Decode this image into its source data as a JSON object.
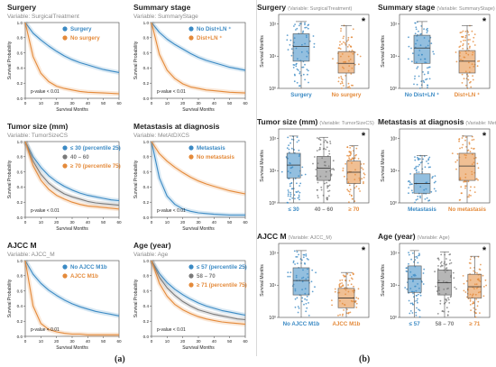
{
  "colors": {
    "blue": "#3b8ac4",
    "orange": "#e48a3a",
    "gray": "#7a7a7a",
    "star": "#111111"
  },
  "panel_labels": {
    "a": "(a)",
    "b": "(b)"
  },
  "chart_data": [
    {
      "type": "line",
      "panel": "a",
      "title": "Surgery",
      "subtitle": "Variable: SurgicalTreatment",
      "xlabel": "Survival Months",
      "ylabel": "Survival Probability",
      "xlim": [
        0,
        60
      ],
      "ylim": [
        0,
        1
      ],
      "xticks": [
        "0",
        "10",
        "20",
        "30",
        "40",
        "50",
        "60"
      ],
      "yticks": [
        "0.0",
        "0.2",
        "0.4",
        "0.6",
        "0.8",
        "1.0"
      ],
      "legend_position": "top-right",
      "annotation": "p-value < 0.01",
      "x": [
        0,
        5,
        10,
        15,
        20,
        25,
        30,
        35,
        40,
        45,
        50,
        55,
        60
      ],
      "series": [
        {
          "name": "Surgery",
          "color": "blue",
          "values": [
            1.0,
            0.86,
            0.77,
            0.69,
            0.62,
            0.56,
            0.51,
            0.47,
            0.44,
            0.41,
            0.38,
            0.36,
            0.34
          ]
        },
        {
          "name": "No surgery",
          "color": "orange",
          "values": [
            1.0,
            0.55,
            0.33,
            0.22,
            0.16,
            0.13,
            0.11,
            0.09,
            0.08,
            0.075,
            0.07,
            0.065,
            0.06
          ]
        }
      ]
    },
    {
      "type": "line",
      "panel": "a",
      "title": "Summary stage",
      "subtitle": "Variable: SummaryStage",
      "xlabel": "Survival Months",
      "ylabel": "Survival Probability",
      "xlim": [
        0,
        60
      ],
      "ylim": [
        0,
        1
      ],
      "xticks": [
        "0",
        "10",
        "20",
        "30",
        "40",
        "50",
        "60"
      ],
      "yticks": [
        "0.0",
        "0.2",
        "0.4",
        "0.6",
        "0.8",
        "1.0"
      ],
      "legend_position": "top-right",
      "annotation": "p-value < 0.01",
      "x": [
        0,
        5,
        10,
        15,
        20,
        25,
        30,
        35,
        40,
        45,
        50,
        55,
        60
      ],
      "series": [
        {
          "name": "No Dist+LN ⁺",
          "color": "blue",
          "values": [
            1.0,
            0.87,
            0.78,
            0.71,
            0.65,
            0.59,
            0.54,
            0.5,
            0.47,
            0.44,
            0.41,
            0.39,
            0.37
          ]
        },
        {
          "name": "Dist+LN ⁺",
          "color": "orange",
          "values": [
            1.0,
            0.58,
            0.37,
            0.26,
            0.19,
            0.15,
            0.13,
            0.11,
            0.1,
            0.09,
            0.08,
            0.075,
            0.07
          ]
        }
      ]
    },
    {
      "type": "line",
      "panel": "a",
      "title": "Tumor size (mm)",
      "subtitle": "Variable: TumorSizeCS",
      "xlabel": "Survival Months",
      "ylabel": "Survival Probability",
      "xlim": [
        0,
        60
      ],
      "ylim": [
        0,
        1
      ],
      "xticks": [
        "0",
        "10",
        "20",
        "30",
        "40",
        "50",
        "60"
      ],
      "yticks": [
        "0.0",
        "0.2",
        "0.4",
        "0.6",
        "0.8",
        "1.0"
      ],
      "legend_position": "top-right",
      "annotation": "p-value < 0.01",
      "x": [
        0,
        5,
        10,
        15,
        20,
        25,
        30,
        35,
        40,
        45,
        50,
        55,
        60
      ],
      "series": [
        {
          "name": "≤  30  (percentile 25)",
          "color": "blue",
          "values": [
            1.0,
            0.8,
            0.66,
            0.55,
            0.47,
            0.41,
            0.36,
            0.32,
            0.29,
            0.27,
            0.25,
            0.23,
            0.22
          ]
        },
        {
          "name": "40 – 60",
          "color": "gray",
          "values": [
            1.0,
            0.74,
            0.57,
            0.45,
            0.37,
            0.31,
            0.27,
            0.24,
            0.21,
            0.19,
            0.18,
            0.17,
            0.16
          ]
        },
        {
          "name": "≥  70  (percentile 75)",
          "color": "orange",
          "values": [
            1.0,
            0.68,
            0.49,
            0.37,
            0.29,
            0.24,
            0.2,
            0.17,
            0.15,
            0.14,
            0.13,
            0.12,
            0.11
          ]
        }
      ]
    },
    {
      "type": "line",
      "panel": "a",
      "title": "Metastasis at diagnosis",
      "subtitle": "Variable: MetAtDXCS",
      "xlabel": "Survival Months",
      "ylabel": "Survival Probability",
      "xlim": [
        0,
        60
      ],
      "ylim": [
        0,
        1
      ],
      "xticks": [
        "0",
        "10",
        "20",
        "30",
        "40",
        "50",
        "60"
      ],
      "yticks": [
        "0.0",
        "0.2",
        "0.4",
        "0.6",
        "0.8",
        "1.0"
      ],
      "legend_position": "top-right",
      "annotation": "p-value < 0.01",
      "x": [
        0,
        5,
        10,
        15,
        20,
        25,
        30,
        35,
        40,
        45,
        50,
        55,
        60
      ],
      "series": [
        {
          "name": "Metastasis",
          "color": "blue",
          "values": [
            1.0,
            0.52,
            0.28,
            0.17,
            0.11,
            0.08,
            0.06,
            0.05,
            0.04,
            0.035,
            0.03,
            0.03,
            0.03
          ]
        },
        {
          "name": "No metastasis",
          "color": "orange",
          "values": [
            1.0,
            0.84,
            0.74,
            0.66,
            0.59,
            0.53,
            0.48,
            0.44,
            0.41,
            0.38,
            0.35,
            0.33,
            0.31
          ]
        }
      ]
    },
    {
      "type": "line",
      "panel": "a",
      "title": "AJCC M",
      "subtitle": "Variable: AJCC_M",
      "xlabel": "Survival Months",
      "ylabel": "Survival Probability",
      "xlim": [
        0,
        60
      ],
      "ylim": [
        0,
        1
      ],
      "xticks": [
        "0",
        "10",
        "20",
        "30",
        "40",
        "50",
        "60"
      ],
      "yticks": [
        "0.0",
        "0.2",
        "0.4",
        "0.6",
        "0.8",
        "1.0"
      ],
      "legend_position": "top-right",
      "annotation": "p-value < 0.01",
      "x": [
        0,
        5,
        10,
        15,
        20,
        25,
        30,
        35,
        40,
        45,
        50,
        55,
        60
      ],
      "series": [
        {
          "name": "No AJCC M1b",
          "color": "blue",
          "values": [
            1.0,
            0.82,
            0.7,
            0.61,
            0.54,
            0.48,
            0.43,
            0.39,
            0.36,
            0.33,
            0.31,
            0.29,
            0.27
          ]
        },
        {
          "name": "AJCC M1b",
          "color": "orange",
          "values": [
            1.0,
            0.4,
            0.17,
            0.09,
            0.06,
            0.04,
            0.03,
            0.03,
            0.02,
            0.02,
            0.02,
            0.02,
            0.02
          ]
        }
      ]
    },
    {
      "type": "line",
      "panel": "a",
      "title": "Age (year)",
      "subtitle": "Variable: Age",
      "xlabel": "Survival Months",
      "ylabel": "Survival Probability",
      "xlim": [
        0,
        60
      ],
      "ylim": [
        0,
        1
      ],
      "xticks": [
        "0",
        "10",
        "20",
        "30",
        "40",
        "50",
        "60"
      ],
      "yticks": [
        "0.0",
        "0.2",
        "0.4",
        "0.6",
        "0.8",
        "1.0"
      ],
      "legend_position": "top-right",
      "annotation": "p-value < 0.01",
      "x": [
        0,
        5,
        10,
        15,
        20,
        25,
        30,
        35,
        40,
        45,
        50,
        55,
        60
      ],
      "series": [
        {
          "name": "≤  57  (percentile 25)",
          "color": "blue",
          "values": [
            1.0,
            0.83,
            0.71,
            0.62,
            0.55,
            0.49,
            0.44,
            0.4,
            0.37,
            0.34,
            0.32,
            0.3,
            0.28
          ]
        },
        {
          "name": "58 – 70",
          "color": "gray",
          "values": [
            1.0,
            0.78,
            0.64,
            0.54,
            0.46,
            0.4,
            0.35,
            0.32,
            0.29,
            0.27,
            0.25,
            0.23,
            0.22
          ]
        },
        {
          "name": "≥  71  (percentile 75)",
          "color": "orange",
          "values": [
            1.0,
            0.7,
            0.53,
            0.42,
            0.35,
            0.3,
            0.26,
            0.23,
            0.21,
            0.19,
            0.18,
            0.17,
            0.16
          ]
        }
      ]
    },
    {
      "type": "box",
      "panel": "b",
      "title": "Surgery",
      "subtitle": "(Variable: SurgicalTreatment)",
      "ylabel": "Survival Months",
      "yscale": "log",
      "ylim": [
        1,
        200
      ],
      "yticks": [
        "10⁰",
        "10¹",
        "10²"
      ],
      "significance_marker": "*",
      "groups": [
        {
          "label": "Surgery",
          "color": "blue",
          "whisker_low": 1,
          "q1": 7,
          "median": 20,
          "q3": 50,
          "whisker_high": 120
        },
        {
          "label": "No surgery",
          "color": "orange",
          "whisker_low": 1,
          "q1": 3,
          "median": 6,
          "q3": 14,
          "whisker_high": 90
        }
      ]
    },
    {
      "type": "box",
      "panel": "b",
      "title": "Summary stage",
      "subtitle": "(Variable: SummaryStage)",
      "ylabel": "Survival Months",
      "yscale": "log",
      "ylim": [
        1,
        200
      ],
      "yticks": [
        "10⁰",
        "10¹",
        "10²"
      ],
      "significance_marker": "*",
      "groups": [
        {
          "label": "No Dist+LN ⁺",
          "color": "blue",
          "whisker_low": 1,
          "q1": 6,
          "median": 18,
          "q3": 45,
          "whisker_high": 120
        },
        {
          "label": "Dist+LN ⁺",
          "color": "orange",
          "whisker_low": 1,
          "q1": 3,
          "median": 7,
          "q3": 15,
          "whisker_high": 90
        }
      ]
    },
    {
      "type": "box",
      "panel": "b",
      "title": "Tumor size (mm)",
      "subtitle": "(Variable: TumorSizeCS)",
      "ylabel": "Survival Months",
      "yscale": "log",
      "ylim": [
        1,
        200
      ],
      "yticks": [
        "10⁰",
        "10¹",
        "10²"
      ],
      "significance_marker": "*",
      "groups": [
        {
          "label": "≤  30",
          "color": "blue",
          "whisker_low": 1,
          "q1": 6,
          "median": 15,
          "q3": 35,
          "whisker_high": 120
        },
        {
          "label": "40 – 60",
          "color": "gray",
          "whisker_low": 1,
          "q1": 5,
          "median": 12,
          "q3": 28,
          "whisker_high": 110
        },
        {
          "label": "≥  70",
          "color": "orange",
          "whisker_low": 1,
          "q1": 4,
          "median": 9,
          "q3": 20,
          "whisker_high": 60
        }
      ]
    },
    {
      "type": "box",
      "panel": "b",
      "title": "Metastasis at diagnosis",
      "subtitle": "(Variable: MetAtDXCS)",
      "ylabel": "Survival Months",
      "yscale": "log",
      "ylim": [
        1,
        200
      ],
      "yticks": [
        "10⁰",
        "10¹",
        "10²"
      ],
      "significance_marker": "*",
      "groups": [
        {
          "label": "Metastasis",
          "color": "blue",
          "whisker_low": 1,
          "q1": 2,
          "median": 4,
          "q3": 8,
          "whisker_high": 30
        },
        {
          "label": "No metastasis",
          "color": "orange",
          "whisker_low": 1,
          "q1": 5,
          "median": 14,
          "q3": 35,
          "whisker_high": 120
        }
      ]
    },
    {
      "type": "box",
      "panel": "b",
      "title": "AJCC M",
      "subtitle": "(Variable: AJCC_M)",
      "ylabel": "Survival Months",
      "yscale": "log",
      "ylim": [
        1,
        200
      ],
      "yticks": [
        "10⁰",
        "10¹",
        "10²"
      ],
      "significance_marker": "*",
      "groups": [
        {
          "label": "No AJCC M1b",
          "color": "blue",
          "whisker_low": 1,
          "q1": 5,
          "median": 14,
          "q3": 35,
          "whisker_high": 120
        },
        {
          "label": "AJCC M1b",
          "color": "orange",
          "whisker_low": 1,
          "q1": 2,
          "median": 4,
          "q3": 8,
          "whisker_high": 25
        }
      ]
    },
    {
      "type": "box",
      "panel": "b",
      "title": "Age (year)",
      "subtitle": "(Variable: Age)",
      "ylabel": "Survival Months",
      "yscale": "log",
      "ylim": [
        1,
        200
      ],
      "yticks": [
        "10⁰",
        "10¹",
        "10²"
      ],
      "significance_marker": "*",
      "groups": [
        {
          "label": "≤  57",
          "color": "blue",
          "whisker_low": 1,
          "q1": 6,
          "median": 16,
          "q3": 40,
          "whisker_high": 120
        },
        {
          "label": "58 – 70",
          "color": "gray",
          "whisker_low": 1,
          "q1": 5,
          "median": 12,
          "q3": 30,
          "whisker_high": 110
        },
        {
          "label": "≥  71",
          "color": "orange",
          "whisker_low": 1,
          "q1": 4,
          "median": 9,
          "q3": 22,
          "whisker_high": 80
        }
      ]
    }
  ]
}
